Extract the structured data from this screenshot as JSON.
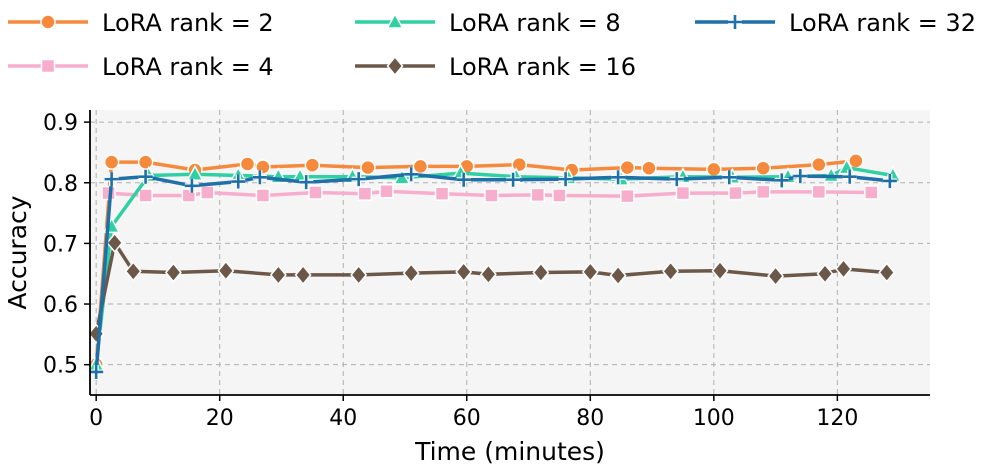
{
  "chart_data": {
    "type": "line",
    "title": "",
    "xlabel": "Time (minutes)",
    "ylabel": "Accuracy",
    "xlim": [
      -1,
      135
    ],
    "ylim": [
      0.45,
      0.92
    ],
    "xticks": [
      0,
      20,
      40,
      60,
      80,
      100,
      120
    ],
    "yticks": [
      0.5,
      0.6,
      0.7,
      0.8,
      0.9
    ],
    "grid": true,
    "legend_position": "top",
    "series": [
      {
        "name": "LoRA rank = 2",
        "color": "#f58a3d",
        "marker": "circle",
        "x": [
          0,
          2.5,
          8,
          16,
          24.5,
          27,
          35,
          44,
          52.5,
          60,
          68.5,
          77,
          86,
          89.5,
          100,
          108,
          117,
          123
        ],
        "y": [
          0.5,
          0.834,
          0.834,
          0.821,
          0.831,
          0.826,
          0.829,
          0.825,
          0.827,
          0.827,
          0.83,
          0.821,
          0.825,
          0.824,
          0.822,
          0.824,
          0.83,
          0.836
        ]
      },
      {
        "name": "LoRA rank = 4",
        "color": "#f7aecd",
        "marker": "square",
        "x": [
          2,
          8,
          15,
          18,
          27,
          35.5,
          43.5,
          47,
          56,
          64,
          71.5,
          75,
          86,
          95,
          103.5,
          108,
          117,
          125.5
        ],
        "y": [
          0.783,
          0.779,
          0.779,
          0.784,
          0.779,
          0.784,
          0.782,
          0.786,
          0.782,
          0.779,
          0.78,
          0.779,
          0.778,
          0.783,
          0.783,
          0.785,
          0.785,
          0.784
        ]
      },
      {
        "name": "LoRA rank = 8",
        "color": "#2fd1a3",
        "marker": "triangle",
        "x": [
          0,
          2.5,
          8.5,
          16,
          23,
          29.5,
          33,
          41.5,
          49.5,
          59,
          68,
          76.5,
          85,
          95,
          103,
          112,
          119,
          121.5,
          129
        ],
        "y": [
          0.5,
          0.728,
          0.812,
          0.814,
          0.812,
          0.81,
          0.81,
          0.81,
          0.808,
          0.816,
          0.81,
          0.808,
          0.806,
          0.81,
          0.809,
          0.81,
          0.812,
          0.825,
          0.812
        ]
      },
      {
        "name": "LoRA rank = 16",
        "color": "#6b5848",
        "marker": "diamond",
        "x": [
          0,
          3,
          6,
          12.5,
          21,
          29.5,
          33.5,
          42.5,
          51,
          59.5,
          63.5,
          72,
          80,
          84.5,
          93,
          101,
          110,
          118,
          121,
          128
        ],
        "y": [
          0.551,
          0.701,
          0.654,
          0.652,
          0.655,
          0.648,
          0.648,
          0.648,
          0.651,
          0.653,
          0.649,
          0.652,
          0.653,
          0.647,
          0.654,
          0.655,
          0.646,
          0.65,
          0.658,
          0.652
        ]
      },
      {
        "name": "LoRA rank = 32",
        "color": "#1f6fa8",
        "marker": "plus",
        "x": [
          0,
          2.5,
          8,
          15.5,
          23,
          26.5,
          34,
          42.5,
          51,
          59.5,
          67.5,
          76,
          84.5,
          94,
          102.5,
          111,
          114,
          122,
          128.5
        ],
        "y": [
          0.488,
          0.806,
          0.81,
          0.795,
          0.802,
          0.809,
          0.801,
          0.806,
          0.814,
          0.805,
          0.805,
          0.806,
          0.809,
          0.806,
          0.809,
          0.804,
          0.811,
          0.81,
          0.803
        ]
      }
    ]
  }
}
